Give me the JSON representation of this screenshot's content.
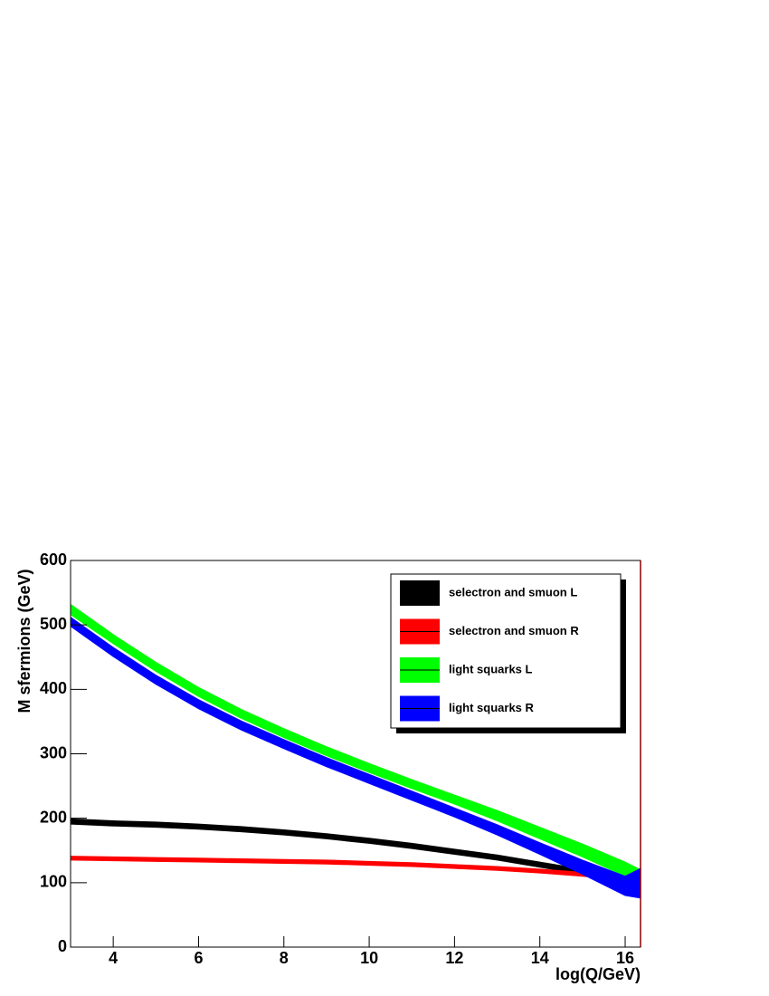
{
  "chart_data": {
    "type": "band",
    "x_label": "log(Q/GeV)",
    "y_label": "M sfermions (GeV)",
    "x": [
      3,
      4,
      5,
      6,
      7,
      8,
      9,
      10,
      11,
      12,
      13,
      14,
      15,
      16,
      16.36
    ],
    "series": [
      {
        "name": "selectron and smuon L",
        "color": "#000000",
        "high": [
          199,
          196,
          194,
          191,
          187,
          182,
          176,
          169,
          161,
          152,
          143,
          132,
          121,
          110,
          106
        ],
        "low": [
          191,
          188,
          186,
          183,
          179,
          174,
          168,
          161,
          153,
          144,
          135,
          124,
          113,
          102,
          98
        ]
      },
      {
        "name": "selectron and smuon R",
        "color": "#ff0000",
        "high": [
          141,
          140,
          139,
          138,
          137,
          136,
          135,
          133,
          131,
          128,
          125,
          121,
          116,
          110,
          107
        ],
        "low": [
          135,
          134,
          133,
          132,
          131,
          130,
          129,
          127,
          125,
          122,
          119,
          115,
          110,
          104,
          101
        ]
      },
      {
        "name": "light squarks L",
        "color": "#00ff00",
        "high": [
          532,
          485,
          442,
          403,
          369,
          339,
          311,
          285,
          260,
          236,
          212,
          186,
          160,
          132,
          120
        ],
        "low": [
          516,
          471,
          428,
          389,
          355,
          325,
          297,
          271,
          246,
          222,
          196,
          168,
          140,
          110,
          96
        ]
      },
      {
        "name": "light squarks R",
        "color": "#0000ff",
        "high": [
          512,
          465,
          422,
          384,
          351,
          322,
          294,
          268,
          242,
          216,
          190,
          162,
          135,
          110,
          122
        ],
        "low": [
          498,
          451,
          408,
          370,
          337,
          308,
          280,
          254,
          228,
          202,
          174,
          144,
          113,
          80,
          76
        ]
      }
    ],
    "xlim": [
      3,
      16.36
    ],
    "ylim": [
      0,
      600
    ],
    "xticks": [
      4,
      6,
      8,
      10,
      12,
      14,
      16
    ],
    "yticks": [
      0,
      100,
      200,
      300,
      400,
      500,
      600
    ],
    "legend": "top-right"
  }
}
